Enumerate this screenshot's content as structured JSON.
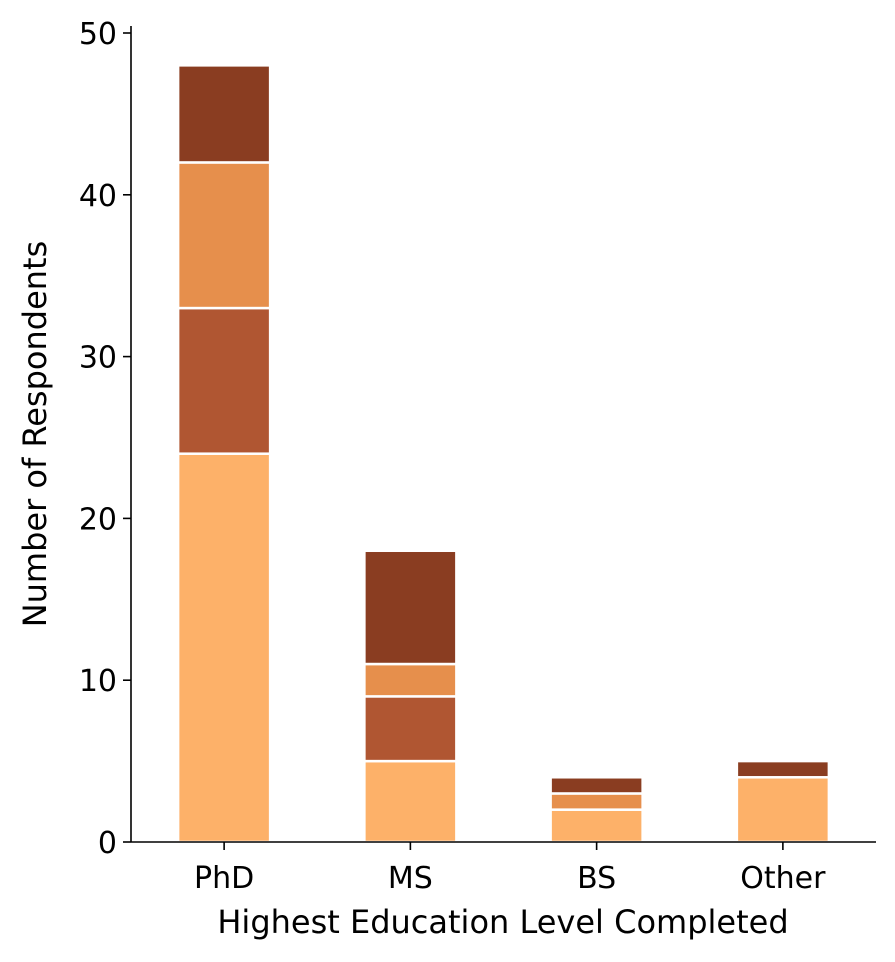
{
  "chart_data": {
    "type": "bar",
    "stacked": true,
    "title": "",
    "xlabel": "Highest Education Level Completed",
    "ylabel": "Number of Respondents",
    "categories": [
      "PhD",
      "MS",
      "BS",
      "Other"
    ],
    "ylim": [
      0,
      50
    ],
    "yticks": [
      0,
      10,
      20,
      30,
      40,
      50
    ],
    "grid": false,
    "legend": "none",
    "series": [
      {
        "values": [
          24,
          5,
          2,
          4
        ],
        "color": "#FDB169"
      },
      {
        "values": [
          9,
          4,
          0,
          0
        ],
        "color": "#B05632"
      },
      {
        "values": [
          9,
          2,
          1,
          0
        ],
        "color": "#E68F4C"
      },
      {
        "values": [
          6,
          7,
          1,
          1
        ],
        "color": "#8A3D21"
      }
    ]
  }
}
